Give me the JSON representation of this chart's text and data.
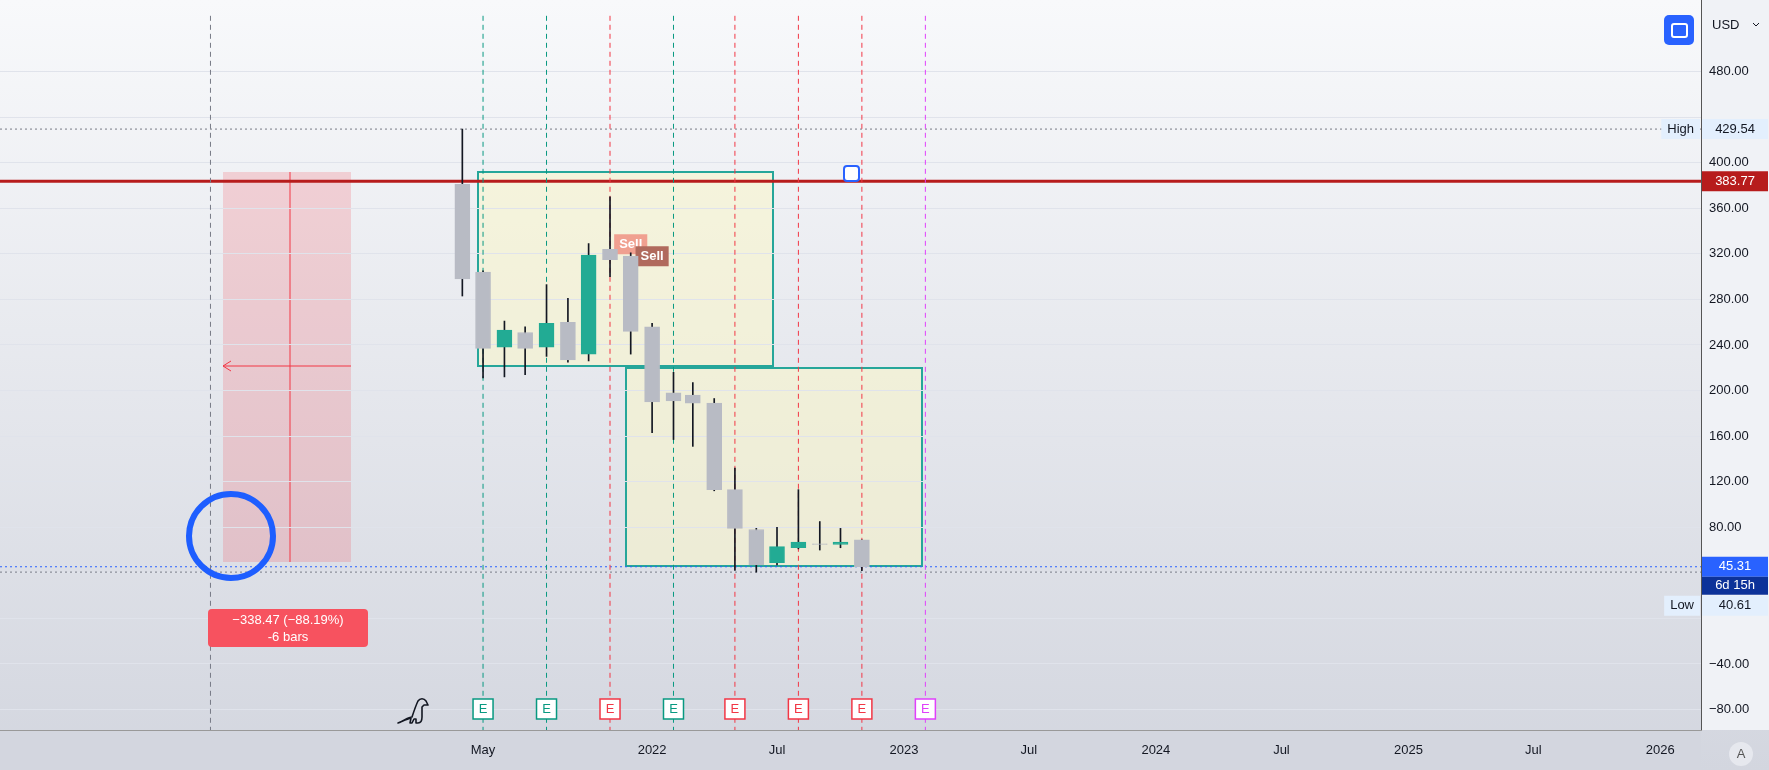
{
  "chart_data": {
    "type": "candlestick",
    "x": [
      "2021-04",
      "2021-05",
      "2021-06",
      "2021-07",
      "2021-08",
      "2021-09",
      "2021-10",
      "2021-11",
      "2021-12",
      "2022-01",
      "2022-02",
      "2022-03",
      "2022-04",
      "2022-05",
      "2022-06",
      "2022-07",
      "2022-08",
      "2022-09",
      "2022-10",
      "2022-11"
    ],
    "ohlc": [
      [
        381,
        429.54,
        283,
        298
      ],
      [
        304,
        305,
        211,
        237
      ],
      [
        238,
        261,
        212,
        253
      ],
      [
        251,
        256,
        214,
        237
      ],
      [
        238,
        293,
        230,
        259
      ],
      [
        260,
        281,
        225,
        227
      ],
      [
        232,
        329,
        226,
        319
      ],
      [
        324,
        370,
        300,
        315
      ],
      [
        318,
        321,
        232,
        252
      ],
      [
        256,
        259,
        163,
        190
      ],
      [
        198,
        216,
        157,
        191
      ],
      [
        196,
        207,
        151,
        189
      ],
      [
        189,
        193,
        112,
        113
      ],
      [
        113,
        132,
        42,
        79
      ],
      [
        78,
        79,
        40.61,
        47
      ],
      [
        49,
        80,
        47,
        63
      ],
      [
        62,
        113,
        61,
        67
      ],
      [
        65.5,
        85,
        60,
        65
      ],
      [
        65,
        79,
        62,
        67
      ],
      [
        69,
        69,
        41.8,
        45.31
      ]
    ],
    "colors": [
      "#b8bbc4",
      "#b8bbc4",
      "#22ab94",
      "#b8bbc4",
      "#22ab94",
      "#b8bbc4",
      "#22ab94",
      "#b8bbc4",
      "#b8bbc4",
      "#b8bbc4",
      "#b8bbc4",
      "#b8bbc4",
      "#b8bbc4",
      "#b8bbc4",
      "#b8bbc4",
      "#22ab94",
      "#22ab94",
      "#b8bbc4",
      "#22ab94",
      "#b8bbc4"
    ],
    "xlim": [
      "2019-06",
      "2026-03"
    ],
    "xticks": [
      {
        "value": "2021-05",
        "label": "May"
      },
      "2022",
      {
        "value": "2022-07",
        "label": "Jul"
      },
      "2023",
      {
        "value": "2023-07",
        "label": "Jul"
      },
      "2024",
      {
        "value": "2024-07",
        "label": "Jul"
      },
      "2025",
      {
        "value": "2025-07",
        "label": "Jul"
      },
      "2026"
    ],
    "ylim": [
      -98,
      529
    ],
    "yticks": [
      {
        "value": -80,
        "label": "−80.00"
      },
      {
        "value": -40,
        "label": "−40.00"
      },
      {
        "value": 0,
        "label": null
      },
      {
        "value": 40,
        "label": null
      },
      {
        "value": 80,
        "label": "80.00"
      },
      {
        "value": 120,
        "label": "120.00"
      },
      {
        "value": 160,
        "label": "160.00"
      },
      {
        "value": 200,
        "label": "200.00"
      },
      {
        "value": 240,
        "label": "240.00"
      },
      {
        "value": 280,
        "label": "280.00"
      },
      {
        "value": 320,
        "label": "320.00"
      },
      {
        "value": 360,
        "label": "360.00"
      },
      {
        "value": 400,
        "label": "400.00"
      },
      {
        "value": 440,
        "label": null
      },
      {
        "value": 480,
        "label": "480.00"
      }
    ],
    "grid": "y",
    "legend": false,
    "ref_lines": [
      {
        "axis": "y",
        "value": 383.77,
        "label": "383.77",
        "color": "#b71c1c",
        "line_style": "solid"
      },
      {
        "axis": "y",
        "value": 429.54,
        "label": "429.54",
        "color": "#787b86",
        "line_style": "dotted"
      },
      {
        "axis": "y",
        "value": 45.31,
        "label": "45.31",
        "color": "#2962ff",
        "line_style": "dotted"
      },
      {
        "axis": "y",
        "value": 40.61,
        "label": "40.61",
        "color": "#787b86",
        "line_style": "dotted"
      },
      {
        "axis": "x",
        "value": "2020-04",
        "label": null,
        "color": "#787b86",
        "line_style": "dashed"
      },
      {
        "axis": "x",
        "value": "2021-05",
        "label": "E",
        "color": "#089981",
        "line_style": "dashed"
      },
      {
        "axis": "x",
        "value": "2021-08",
        "label": "E",
        "color": "#089981",
        "line_style": "dashed"
      },
      {
        "axis": "x",
        "value": "2021-11",
        "label": "E",
        "color": "#f23645",
        "line_style": "dashed"
      },
      {
        "axis": "x",
        "value": "2022-02",
        "label": "E",
        "color": "#089981",
        "line_style": "dashed"
      },
      {
        "axis": "x",
        "value": "2022-05",
        "label": "E",
        "color": "#f23645",
        "line_style": "dashed"
      },
      {
        "axis": "x",
        "value": "2022-08",
        "label": "E",
        "color": "#f23645",
        "line_style": "dashed"
      },
      {
        "axis": "x",
        "value": "2022-11",
        "label": "E",
        "color": "#f23645",
        "line_style": "dashed"
      },
      {
        "axis": "x",
        "value": "2023-02",
        "label": "E",
        "color": "#e040fb",
        "line_style": "dashed"
      }
    ],
    "annotations": [
      "Sell",
      "Sell",
      "−338.47 (−88.19%)",
      "-6 bars",
      "USD",
      "A",
      "High",
      "6d 15h",
      "Low"
    ]
  }
}
